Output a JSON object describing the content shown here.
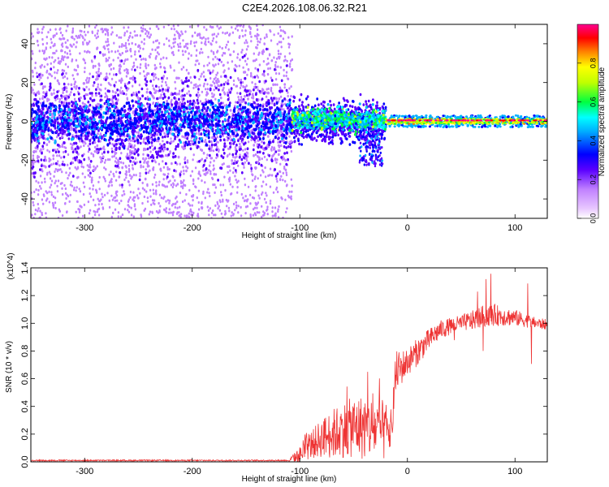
{
  "title": "C2E4.2026.108.06.32.R21",
  "chart_data": [
    {
      "type": "heatmap",
      "name": "spectrogram",
      "xlabel": "Height of straight line (km)",
      "ylabel": "Frequency (Hz)",
      "xlim": [
        -350,
        130
      ],
      "ylim": [
        -50,
        50
      ],
      "xticks": [
        -300,
        -200,
        -100,
        0,
        100
      ],
      "xtick_labels": [
        "-300",
        "-200",
        "-100",
        "0",
        "100"
      ],
      "yticks": [
        -40,
        -20,
        0,
        20,
        40
      ],
      "ytick_labels": [
        "-40",
        "-20",
        "0",
        "20",
        "40"
      ],
      "colorbar": {
        "label": "Normalized spectral amplitude",
        "range": [
          0,
          1
        ],
        "ticks": [
          0.0,
          0.2,
          0.4,
          0.6,
          0.8
        ],
        "tick_labels": [
          "0.0",
          "0.2",
          "0.4",
          "0.6",
          "0.8"
        ],
        "colors": [
          "#ffffff",
          "#d9b8ff",
          "#7a00ff",
          "#0000ff",
          "#00ffff",
          "#00ff00",
          "#ffff00",
          "#ff8000",
          "#ff0000",
          "#ff0080"
        ]
      },
      "regions": [
        {
          "x_range": [
            -350,
            -107
          ],
          "spread_hz": 50,
          "core_hz": 8,
          "peak_amplitude": 0.25,
          "description": "broad scatter"
        },
        {
          "x_range": [
            -107,
            -20
          ],
          "spread_hz": 10,
          "core_hz": 4,
          "peak_amplitude": 0.55
        },
        {
          "x_range": [
            -20,
            130
          ],
          "spread_hz": 3,
          "core_hz": 1,
          "peak_amplitude": 0.95
        }
      ]
    },
    {
      "type": "line",
      "name": "snr",
      "xlabel": "Height of straight line (km)",
      "ylabel": "SNR (10 * v/v)",
      "y_multiplier": "(x10^4)",
      "xlim": [
        -350,
        130
      ],
      "ylim": [
        0,
        1.4
      ],
      "xticks": [
        -300,
        -200,
        -100,
        0,
        100
      ],
      "xtick_labels": [
        "-300",
        "-200",
        "-100",
        "0",
        "100"
      ],
      "yticks": [
        0.0,
        0.2,
        0.4,
        0.6,
        0.8,
        1.0,
        1.2,
        1.4
      ],
      "ytick_labels": [
        "0.0",
        "0.2",
        "0.4",
        "0.6",
        "0.8",
        "1.0",
        "1.2",
        "1.4"
      ],
      "color": "#ee3333",
      "series": [
        {
          "name": "SNR",
          "x": [
            -350,
            -300,
            -250,
            -200,
            -150,
            -110,
            -100,
            -90,
            -80,
            -70,
            -60,
            -50,
            -40,
            -30,
            -20,
            -15,
            -12,
            -10,
            0,
            10,
            20,
            30,
            40,
            50,
            60,
            70,
            80,
            90,
            100,
            110,
            120,
            130
          ],
          "y": [
            0.0,
            0.0,
            0.0,
            0.0,
            0.0,
            0.01,
            0.05,
            0.12,
            0.17,
            0.2,
            0.23,
            0.25,
            0.25,
            0.24,
            0.22,
            0.2,
            0.55,
            0.65,
            0.72,
            0.8,
            0.88,
            0.95,
            0.98,
            1.0,
            1.02,
            1.05,
            1.06,
            1.05,
            1.04,
            1.02,
            1.0,
            0.99
          ],
          "noise": [
            0,
            0,
            0,
            0,
            0,
            0.01,
            0.06,
            0.1,
            0.14,
            0.18,
            0.2,
            0.22,
            0.24,
            0.22,
            0.22,
            0.1,
            0.15,
            0.15,
            0.1,
            0.1,
            0.08,
            0.07,
            0.06,
            0.06,
            0.07,
            0.08,
            0.08,
            0.07,
            0.06,
            0.05,
            0.04,
            0.04
          ]
        }
      ]
    }
  ]
}
